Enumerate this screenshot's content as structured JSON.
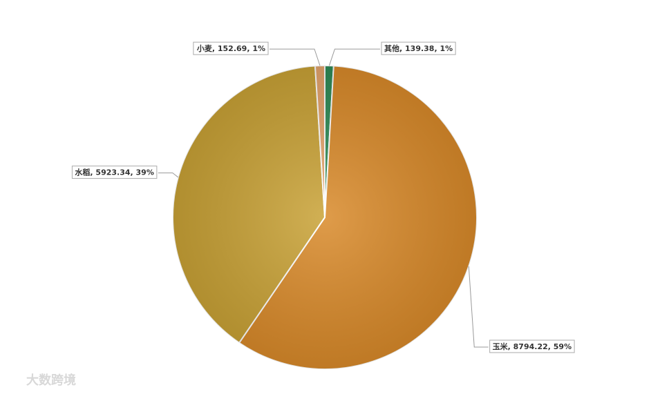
{
  "chart_data": {
    "type": "pie",
    "categories": [
      "其他",
      "玉米",
      "水稻",
      "小麦"
    ],
    "values": [
      139.38,
      8794.22,
      5923.34,
      152.69
    ],
    "value_labels": [
      "其他, 139.38, 1%",
      "玉米, 8794.22, 59%",
      "水稻, 5923.34, 39%",
      "小麦, 152.69, 1%"
    ],
    "colors": [
      "#2e8b57",
      "#d98a2a",
      "#c9a236",
      "#e4a46c"
    ],
    "start_angle": 0,
    "direction": "clockwise"
  },
  "watermark": "大数跨境"
}
